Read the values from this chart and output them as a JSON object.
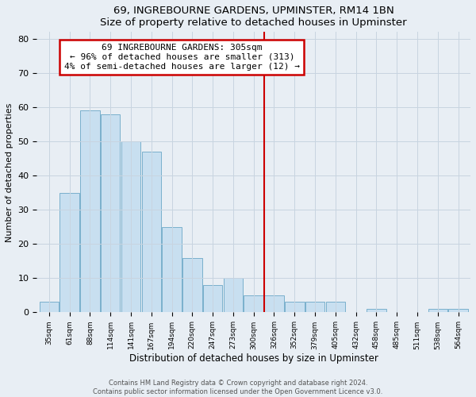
{
  "title": "69, INGREBOURNE GARDENS, UPMINSTER, RM14 1BN",
  "subtitle": "Size of property relative to detached houses in Upminster",
  "xlabel": "Distribution of detached houses by size in Upminster",
  "ylabel": "Number of detached properties",
  "bar_labels": [
    "35sqm",
    "61sqm",
    "88sqm",
    "114sqm",
    "141sqm",
    "167sqm",
    "194sqm",
    "220sqm",
    "247sqm",
    "273sqm",
    "300sqm",
    "326sqm",
    "352sqm",
    "379sqm",
    "405sqm",
    "432sqm",
    "458sqm",
    "485sqm",
    "511sqm",
    "538sqm",
    "564sqm"
  ],
  "bar_values": [
    3,
    35,
    59,
    58,
    50,
    47,
    25,
    16,
    8,
    10,
    5,
    5,
    3,
    3,
    3,
    0,
    1,
    0,
    0,
    1,
    1
  ],
  "bar_color": "#c8dff0",
  "bar_edge_color": "#7ab0cc",
  "vline_x_index": 10.5,
  "vline_color": "#cc0000",
  "annotation_title": "69 INGREBOURNE GARDENS: 305sqm",
  "annotation_line1": "← 96% of detached houses are smaller (313)",
  "annotation_line2": "4% of semi-detached houses are larger (12) →",
  "annotation_box_color": "#cc0000",
  "ylim": [
    0,
    82
  ],
  "yticks": [
    0,
    10,
    20,
    30,
    40,
    50,
    60,
    70,
    80
  ],
  "grid_color": "#c8d4e0",
  "bg_color": "#e8eef4",
  "footer1": "Contains HM Land Registry data © Crown copyright and database right 2024.",
  "footer2": "Contains public sector information licensed under the Open Government Licence v3.0."
}
